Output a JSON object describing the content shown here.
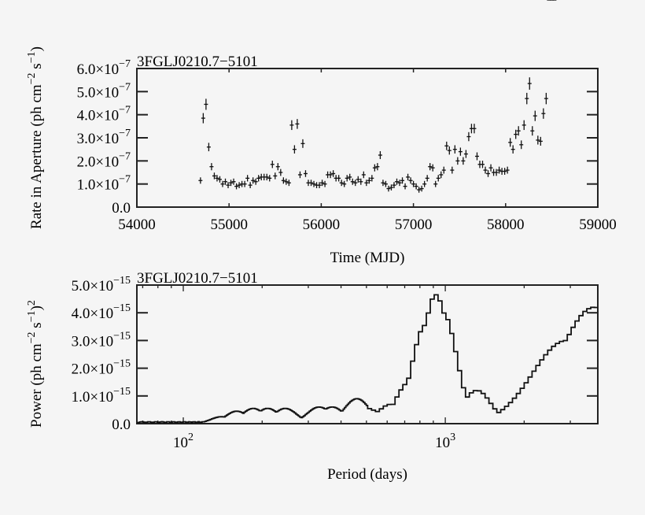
{
  "chart_data": [
    {
      "type": "scatter",
      "title": "3FGLJ0210.7−5101",
      "xlabel": "Time (MJD)",
      "ylabel": "Rate in Aperture (ph cm⁻² s⁻¹)",
      "xlim": [
        54000,
        59000
      ],
      "ylim": [
        0,
        6e-07
      ],
      "xticks": [
        "54000",
        "55000",
        "56000",
        "57000",
        "58000",
        "59000"
      ],
      "yticks": [
        "0.0",
        "1.0×10⁻⁷",
        "2.0×10⁻⁷",
        "3.0×10⁻⁷",
        "4.0×10⁻⁷",
        "5.0×10⁻⁷",
        "6.0×10⁻⁷"
      ],
      "grid": false,
      "error_bars": true,
      "x": [
        54690,
        54720,
        54750,
        54780,
        54810,
        54840,
        54870,
        54900,
        54930,
        54960,
        54990,
        55020,
        55050,
        55080,
        55110,
        55140,
        55170,
        55200,
        55230,
        55260,
        55290,
        55320,
        55350,
        55380,
        55410,
        55440,
        55470,
        55500,
        55530,
        55560,
        55590,
        55620,
        55650,
        55680,
        55710,
        55740,
        55770,
        55800,
        55830,
        55860,
        55890,
        55920,
        55950,
        55980,
        56010,
        56040,
        56070,
        56100,
        56130,
        56160,
        56190,
        56220,
        56250,
        56280,
        56310,
        56340,
        56370,
        56400,
        56430,
        56460,
        56490,
        56520,
        56550,
        56580,
        56610,
        56640,
        56670,
        56700,
        56730,
        56760,
        56790,
        56820,
        56850,
        56880,
        56910,
        56940,
        56970,
        57000,
        57030,
        57060,
        57090,
        57120,
        57150,
        57180,
        57210,
        57240,
        57270,
        57300,
        57330,
        57360,
        57390,
        57420,
        57450,
        57480,
        57510,
        57540,
        57570,
        57600,
        57630,
        57660,
        57690,
        57720,
        57750,
        57780,
        57810,
        57840,
        57870,
        57900,
        57930,
        57960,
        57990,
        58020,
        58050,
        58080,
        58110,
        58140,
        58170,
        58200,
        58230,
        58260,
        58290,
        58320,
        58350,
        58380,
        58410,
        58440,
        58470,
        58500,
        58530
      ],
      "values_e7": [
        1.15,
        3.85,
        4.45,
        2.6,
        1.75,
        1.35,
        1.25,
        1.2,
        1.0,
        1.1,
        0.95,
        1.05,
        1.1,
        0.9,
        0.95,
        1.0,
        1.0,
        1.25,
        0.95,
        1.15,
        1.1,
        1.25,
        1.3,
        1.3,
        1.3,
        1.25,
        1.85,
        1.35,
        1.75,
        1.5,
        1.15,
        1.1,
        1.05,
        3.55,
        2.5,
        3.6,
        1.4,
        2.75,
        1.45,
        1.05,
        1.05,
        1.0,
        0.95,
        0.95,
        1.05,
        1.0,
        1.4,
        1.4,
        1.45,
        1.25,
        1.25,
        1.05,
        1.0,
        1.25,
        1.3,
        1.1,
        1.05,
        1.2,
        1.1,
        1.4,
        1.05,
        1.15,
        1.25,
        1.7,
        1.75,
        2.25,
        1.05,
        1.0,
        0.8,
        0.85,
        0.95,
        1.1,
        1.05,
        1.15,
        0.9,
        1.3,
        1.15,
        1.0,
        0.9,
        0.75,
        0.8,
        1.0,
        1.25,
        1.75,
        1.7,
        1.0,
        1.25,
        1.4,
        1.6,
        2.65,
        2.45,
        1.6,
        2.5,
        2.0,
        2.4,
        2.0,
        2.3,
        3.05,
        3.4,
        3.4,
        2.2,
        1.85,
        1.85,
        1.6,
        1.45,
        1.7,
        1.5,
        1.5,
        1.6,
        1.55,
        1.55,
        1.6,
        2.8,
        2.5,
        3.15,
        3.3,
        2.7,
        3.55,
        4.7,
        5.35,
        3.3,
        3.95,
        2.9,
        2.85,
        4.05,
        4.7
      ],
      "values_note": "y values are in units of 1e-7 ph cm^-2 s^-1, estimated"
    },
    {
      "type": "line",
      "subtype": "step",
      "title": "3FGLJ0210.7−5101",
      "xlabel": "Period (days)",
      "ylabel": "Power (ph cm⁻² s⁻¹)²",
      "xscale": "log",
      "xlim": [
        66,
        3820
      ],
      "ylim": [
        0,
        5e-15
      ],
      "xticks": [
        "10²",
        "10³"
      ],
      "yticks": [
        "0.0",
        "1.0×10⁻¹⁵",
        "2.0×10⁻¹⁵",
        "3.0×10⁻¹⁵",
        "4.0×10⁻¹⁵",
        "5.0×10⁻¹⁵"
      ],
      "grid": false,
      "peaks": [
        {
          "period": 140,
          "power_e15": 0.25
        },
        {
          "period": 160,
          "power_e15": 0.45
        },
        {
          "period": 185,
          "power_e15": 0.55
        },
        {
          "period": 210,
          "power_e15": 0.55
        },
        {
          "period": 245,
          "power_e15": 0.55
        },
        {
          "period": 330,
          "power_e15": 0.6
        },
        {
          "period": 370,
          "power_e15": 0.6
        },
        {
          "period": 460,
          "power_e15": 0.9
        },
        {
          "period": 520,
          "power_e15": 0.5
        },
        {
          "period": 620,
          "power_e15": 0.7
        },
        {
          "period": 730,
          "power_e15": 1.5
        },
        {
          "period": 840,
          "power_e15": 3.55
        },
        {
          "period": 920,
          "power_e15": 4.65
        },
        {
          "period": 980,
          "power_e15": 4.0
        },
        {
          "period": 1320,
          "power_e15": 1.2
        },
        {
          "period": 2900,
          "power_e15": 3.0
        },
        {
          "period": 3700,
          "power_e15": 4.2
        }
      ],
      "values_note": "power in units of 1e-15, estimated from step outline"
    }
  ],
  "plot1": {
    "title": "3FGLJ0210.7−5101",
    "xlabel": "Time (MJD)",
    "ylabel": "Rate in Aperture (ph cm",
    "xticks": [
      "54000",
      "55000",
      "56000",
      "57000",
      "58000",
      "59000"
    ],
    "yticks": [
      "0.0",
      "1.0×10",
      "2.0×10",
      "3.0×10",
      "4.0×10",
      "5.0×10",
      "6.0×10"
    ],
    "yexp": "−7"
  },
  "plot2": {
    "title": "3FGLJ0210.7−5101",
    "xlabel": "Period (days)",
    "ylabel": "Power (ph cm",
    "xticks": [
      "10",
      "10"
    ],
    "xexp": [
      "2",
      "3"
    ],
    "yticks": [
      "0.0",
      "1.0×10",
      "2.0×10",
      "3.0×10",
      "4.0×10",
      "5.0×10"
    ],
    "yexp": "−15"
  }
}
